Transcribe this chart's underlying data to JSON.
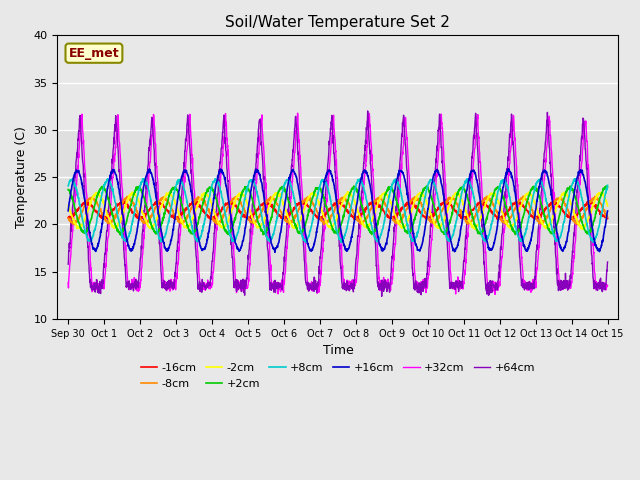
{
  "title": "Soil/Water Temperature Set 2",
  "xlabel": "Time",
  "ylabel": "Temperature (C)",
  "ylim": [
    10,
    40
  ],
  "background_color": "#e8e8e8",
  "plot_bg_color": "#e8e8e8",
  "series": [
    {
      "label": "-16cm",
      "color": "#ff0000",
      "amp": 0.8,
      "phase": 0.0,
      "mean": 21.5,
      "surface": false
    },
    {
      "label": "-8cm",
      "color": "#ff8800",
      "amp": 1.3,
      "phase": 0.15,
      "mean": 21.5,
      "surface": false
    },
    {
      "label": "-2cm",
      "color": "#ffff00",
      "amp": 1.8,
      "phase": 0.3,
      "mean": 21.5,
      "surface": false
    },
    {
      "label": "+2cm",
      "color": "#00cc00",
      "amp": 2.4,
      "phase": 0.45,
      "mean": 21.5,
      "surface": false
    },
    {
      "label": "+8cm",
      "color": "#00cccc",
      "amp": 3.2,
      "phase": 0.6,
      "mean": 21.5,
      "surface": false
    },
    {
      "label": "+16cm",
      "color": "#0000cc",
      "amp": 4.2,
      "phase": 0.75,
      "mean": 21.5,
      "surface": false
    },
    {
      "label": "+32cm",
      "color": "#ff00ff",
      "amp": 9.0,
      "phase": 0.0,
      "mean": 22.5,
      "surface": true
    },
    {
      "label": "+64cm",
      "color": "#8800bb",
      "amp": 9.0,
      "phase": 0.05,
      "mean": 22.5,
      "surface": true
    }
  ],
  "xtick_labels": [
    "Sep 30",
    "Oct 1",
    "Oct 2",
    "Oct 3",
    "Oct 4",
    "Oct 5",
    "Oct 6",
    "Oct 7",
    "Oct 8",
    "Oct 9",
    "Oct 10",
    "Oct 11",
    "Oct 12",
    "Oct 13",
    "Oct 14",
    "Oct 15"
  ],
  "xtick_positions": [
    0,
    1,
    2,
    3,
    4,
    5,
    6,
    7,
    8,
    9,
    10,
    11,
    12,
    13,
    14,
    15
  ],
  "annotation_text": "EE_met",
  "grid_color": "#ffffff",
  "figsize": [
    6.4,
    4.8
  ],
  "dpi": 100
}
